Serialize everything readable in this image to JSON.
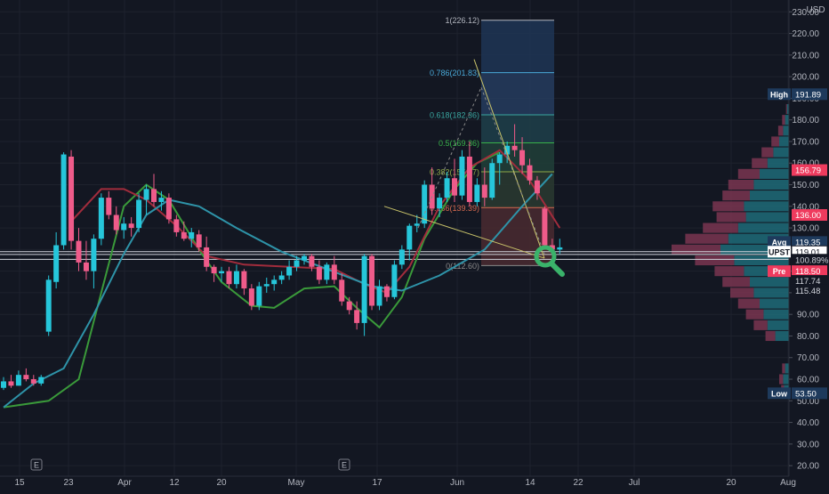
{
  "chart_data": {
    "type": "candlestick",
    "currency": "USD",
    "symbol": "UPST",
    "x_labels": [
      "15",
      "23",
      "Apr",
      "12",
      "20",
      "May",
      "17",
      "Jun",
      "14",
      "22",
      "Jul",
      "20",
      "Aug"
    ],
    "y_ticks": [
      "20.00",
      "30.00",
      "40.00",
      "50.00",
      "60.00",
      "70.00",
      "80.00",
      "90.00",
      "100.00",
      "110.00",
      "120.00",
      "130.00",
      "140.00",
      "150.00",
      "160.00",
      "170.00",
      "180.00",
      "190.00",
      "200.00",
      "210.00",
      "220.00",
      "230.00"
    ],
    "ylim": [
      18,
      233
    ],
    "event_markers": [
      {
        "label": "E",
        "x": "21"
      },
      {
        "label": "E",
        "x": "May 11"
      }
    ],
    "candles": [
      {
        "d": "Mar 12",
        "o": 56,
        "h": 61,
        "l": 55,
        "c": 59
      },
      {
        "d": "Mar 15",
        "o": 59,
        "h": 62,
        "l": 56,
        "c": 57
      },
      {
        "d": "Mar 16",
        "o": 57,
        "h": 64,
        "l": 57,
        "c": 62
      },
      {
        "d": "Mar 17",
        "o": 62,
        "h": 65,
        "l": 59,
        "c": 60
      },
      {
        "d": "Mar 18",
        "o": 60,
        "h": 62,
        "l": 57,
        "c": 58
      },
      {
        "d": "Mar 19",
        "o": 58,
        "h": 62,
        "l": 57,
        "c": 61
      },
      {
        "d": "Mar 22",
        "o": 82,
        "h": 108,
        "l": 80,
        "c": 106
      },
      {
        "d": "Mar 23",
        "o": 105,
        "h": 128,
        "l": 102,
        "c": 122
      },
      {
        "d": "Mar 24",
        "o": 122,
        "h": 165,
        "l": 120,
        "c": 164
      },
      {
        "d": "Mar 25",
        "o": 163,
        "h": 166,
        "l": 120,
        "c": 124
      },
      {
        "d": "Mar 26",
        "o": 124,
        "h": 130,
        "l": 110,
        "c": 114
      },
      {
        "d": "Mar 29",
        "o": 114,
        "h": 124,
        "l": 106,
        "c": 110
      },
      {
        "d": "Mar 30",
        "o": 110,
        "h": 127,
        "l": 102,
        "c": 125
      },
      {
        "d": "Mar 31",
        "o": 125,
        "h": 146,
        "l": 122,
        "c": 144
      },
      {
        "d": "Apr 1",
        "o": 144,
        "h": 147,
        "l": 134,
        "c": 136
      },
      {
        "d": "Apr 5",
        "o": 136,
        "h": 140,
        "l": 127,
        "c": 129
      },
      {
        "d": "Apr 6",
        "o": 129,
        "h": 135,
        "l": 125,
        "c": 132
      },
      {
        "d": "Apr 7",
        "o": 132,
        "h": 135,
        "l": 126,
        "c": 130
      },
      {
        "d": "Apr 8",
        "o": 130,
        "h": 146,
        "l": 128,
        "c": 143
      },
      {
        "d": "Apr 9",
        "o": 143,
        "h": 150,
        "l": 136,
        "c": 148
      },
      {
        "d": "Apr 12",
        "o": 148,
        "h": 155,
        "l": 140,
        "c": 142
      },
      {
        "d": "Apr 13",
        "o": 142,
        "h": 147,
        "l": 138,
        "c": 144
      },
      {
        "d": "Apr 14",
        "o": 144,
        "h": 146,
        "l": 132,
        "c": 134
      },
      {
        "d": "Apr 15",
        "o": 134,
        "h": 136,
        "l": 126,
        "c": 128
      },
      {
        "d": "Apr 16",
        "o": 128,
        "h": 133,
        "l": 124,
        "c": 125
      },
      {
        "d": "Apr 19",
        "o": 125,
        "h": 130,
        "l": 121,
        "c": 128
      },
      {
        "d": "Apr 20",
        "o": 127,
        "h": 129,
        "l": 119,
        "c": 121
      },
      {
        "d": "Apr 21",
        "o": 121,
        "h": 126,
        "l": 110,
        "c": 112
      },
      {
        "d": "Apr 22",
        "o": 112,
        "h": 113,
        "l": 105,
        "c": 109
      },
      {
        "d": "Apr 23",
        "o": 109,
        "h": 112,
        "l": 105,
        "c": 110
      },
      {
        "d": "Apr 26",
        "o": 110,
        "h": 112,
        "l": 102,
        "c": 104
      },
      {
        "d": "Apr 27",
        "o": 104,
        "h": 113,
        "l": 102,
        "c": 110
      },
      {
        "d": "Apr 28",
        "o": 110,
        "h": 111,
        "l": 99,
        "c": 102
      },
      {
        "d": "Apr 29",
        "o": 102,
        "h": 104,
        "l": 92,
        "c": 94
      },
      {
        "d": "Apr 30",
        "o": 94,
        "h": 105,
        "l": 92,
        "c": 103
      },
      {
        "d": "May 3",
        "o": 103,
        "h": 107,
        "l": 100,
        "c": 104
      },
      {
        "d": "May 4",
        "o": 104,
        "h": 108,
        "l": 101,
        "c": 106
      },
      {
        "d": "May 5",
        "o": 106,
        "h": 110,
        "l": 104,
        "c": 108
      },
      {
        "d": "May 6",
        "o": 108,
        "h": 115,
        "l": 106,
        "c": 112
      },
      {
        "d": "May 7",
        "o": 112,
        "h": 117,
        "l": 110,
        "c": 115
      },
      {
        "d": "May 10",
        "o": 115,
        "h": 118,
        "l": 113,
        "c": 117
      },
      {
        "d": "May 11",
        "o": 117,
        "h": 118,
        "l": 110,
        "c": 112
      },
      {
        "d": "May 12",
        "o": 112,
        "h": 115,
        "l": 104,
        "c": 106
      },
      {
        "d": "May 13",
        "o": 106,
        "h": 114,
        "l": 104,
        "c": 113
      },
      {
        "d": "May 14",
        "o": 113,
        "h": 117,
        "l": 104,
        "c": 106
      },
      {
        "d": "May 17",
        "o": 106,
        "h": 109,
        "l": 94,
        "c": 96
      },
      {
        "d": "May 18",
        "o": 96,
        "h": 98,
        "l": 90,
        "c": 92
      },
      {
        "d": "May 19",
        "o": 92,
        "h": 96,
        "l": 83,
        "c": 86
      },
      {
        "d": "May 20",
        "o": 86,
        "h": 118,
        "l": 80,
        "c": 117
      },
      {
        "d": "May 21",
        "o": 117,
        "h": 118,
        "l": 92,
        "c": 94
      },
      {
        "d": "May 24",
        "o": 94,
        "h": 106,
        "l": 92,
        "c": 103
      },
      {
        "d": "May 25",
        "o": 103,
        "h": 104,
        "l": 96,
        "c": 98
      },
      {
        "d": "May 26",
        "o": 98,
        "h": 115,
        "l": 97,
        "c": 113
      },
      {
        "d": "May 27",
        "o": 113,
        "h": 122,
        "l": 111,
        "c": 120
      },
      {
        "d": "May 28",
        "o": 120,
        "h": 132,
        "l": 115,
        "c": 131
      },
      {
        "d": "Jun 1",
        "o": 131,
        "h": 136,
        "l": 128,
        "c": 132
      },
      {
        "d": "Jun 2",
        "o": 132,
        "h": 152,
        "l": 130,
        "c": 150
      },
      {
        "d": "Jun 3",
        "o": 150,
        "h": 158,
        "l": 136,
        "c": 139
      },
      {
        "d": "Jun 4",
        "o": 139,
        "h": 146,
        "l": 135,
        "c": 144
      },
      {
        "d": "Jun 7",
        "o": 144,
        "h": 156,
        "l": 142,
        "c": 153
      },
      {
        "d": "Jun 8",
        "o": 153,
        "h": 162,
        "l": 142,
        "c": 145
      },
      {
        "d": "Jun 9",
        "o": 145,
        "h": 166,
        "l": 143,
        "c": 163
      },
      {
        "d": "Jun 10",
        "o": 163,
        "h": 170,
        "l": 140,
        "c": 142
      },
      {
        "d": "Jun 11",
        "o": 142,
        "h": 153,
        "l": 140,
        "c": 150
      },
      {
        "d": "Jun 14",
        "o": 150,
        "h": 158,
        "l": 140,
        "c": 144
      },
      {
        "d": "Jun 15",
        "o": 144,
        "h": 162,
        "l": 143,
        "c": 160
      },
      {
        "d": "Jun 16",
        "o": 160,
        "h": 165,
        "l": 150,
        "c": 164
      },
      {
        "d": "Jun 17",
        "o": 164,
        "h": 170,
        "l": 160,
        "c": 168
      },
      {
        "d": "Jun 18",
        "o": 168,
        "h": 178,
        "l": 163,
        "c": 166
      },
      {
        "d": "Jun 21",
        "o": 166,
        "h": 172,
        "l": 155,
        "c": 159
      },
      {
        "d": "Jun 22",
        "o": 159,
        "h": 162,
        "l": 150,
        "c": 152
      },
      {
        "d": "Jun 23",
        "o": 152,
        "h": 154,
        "l": 143,
        "c": 146
      },
      {
        "d": "Jun 24",
        "o": 139,
        "h": 140,
        "l": 121,
        "c": 122
      },
      {
        "d": "Jun 25",
        "o": 122,
        "h": 125,
        "l": 118,
        "c": 120
      },
      {
        "d": "Jun 28",
        "o": 120,
        "h": 125,
        "l": 118,
        "c": 121
      }
    ],
    "moving_averages": [
      {
        "color": "#3a9a3a",
        "points": [
          [
            0,
            47
          ],
          [
            6,
            50
          ],
          [
            10,
            60
          ],
          [
            13,
            100
          ],
          [
            16,
            140
          ],
          [
            19,
            150
          ],
          [
            22,
            143
          ],
          [
            26,
            120
          ],
          [
            29,
            105
          ],
          [
            33,
            94
          ],
          [
            36,
            93
          ],
          [
            40,
            102
          ],
          [
            44,
            103
          ],
          [
            47,
            93
          ],
          [
            50,
            84
          ],
          [
            53,
            98
          ],
          [
            56,
            125
          ],
          [
            60,
            148
          ],
          [
            63,
            160
          ],
          [
            66,
            165
          ]
        ]
      },
      {
        "color": "#a12c3c",
        "points": [
          [
            9,
            133
          ],
          [
            13,
            148
          ],
          [
            16,
            148
          ],
          [
            19,
            143
          ],
          [
            23,
            131
          ],
          [
            27,
            117
          ],
          [
            32,
            113
          ],
          [
            38,
            112
          ],
          [
            44,
            111
          ],
          [
            48,
            104
          ],
          [
            51,
            100
          ],
          [
            54,
            112
          ],
          [
            58,
            140
          ],
          [
            62,
            158
          ],
          [
            66,
            166
          ],
          [
            70,
            152
          ],
          [
            74,
            130
          ]
        ]
      },
      {
        "color": "#2e93a8",
        "points": [
          [
            0,
            47
          ],
          [
            4,
            58
          ],
          [
            8,
            65
          ],
          [
            12,
            90
          ],
          [
            16,
            118
          ],
          [
            19,
            136
          ],
          [
            22,
            143
          ],
          [
            26,
            140
          ],
          [
            31,
            130
          ],
          [
            37,
            119
          ],
          [
            43,
            111
          ],
          [
            49,
            103
          ],
          [
            53,
            101
          ],
          [
            58,
            108
          ],
          [
            64,
            120
          ],
          [
            69,
            140
          ],
          [
            73,
            155
          ]
        ]
      }
    ],
    "fibonacci": {
      "levels": [
        {
          "label": "1(226.12)",
          "value": 226.12,
          "color": "#b2b5be",
          "fill": "#1f3555"
        },
        {
          "label": "0.786(201.83)",
          "value": 201.83,
          "color": "#4aa9d8",
          "fill": "#263c5e"
        },
        {
          "label": "0.618(182.36)",
          "value": 182.36,
          "color": "#3aa7a0",
          "fill": "#1e404a"
        },
        {
          "label": "0.5(169.36)",
          "value": 169.36,
          "color": "#38b24a",
          "fill": "#214038"
        },
        {
          "label": "0.382(155.97)",
          "value": 155.97,
          "color": "#8fa846",
          "fill": "#2a3a30"
        },
        {
          "label": "0.236(139.39)",
          "value": 139.39,
          "color": "#d66a50",
          "fill": "#4a2a30"
        },
        {
          "label": "0(112.60)",
          "value": 112.6,
          "color": "#8a8a8a",
          "fill": "#3a2030"
        }
      ],
      "start": "Jun 18",
      "end": "Jun 29"
    },
    "volume_profile": [
      {
        "price": 185,
        "up": 2,
        "down": 1
      },
      {
        "price": 180,
        "up": 4,
        "down": 3
      },
      {
        "price": 175,
        "up": 6,
        "down": 5
      },
      {
        "price": 170,
        "up": 10,
        "down": 8
      },
      {
        "price": 165,
        "up": 16,
        "down": 12
      },
      {
        "price": 160,
        "up": 22,
        "down": 16
      },
      {
        "price": 155,
        "up": 30,
        "down": 22
      },
      {
        "price": 150,
        "up": 36,
        "down": 26
      },
      {
        "price": 145,
        "up": 40,
        "down": 28
      },
      {
        "price": 140,
        "up": 46,
        "down": 32
      },
      {
        "price": 135,
        "up": 44,
        "down": 30
      },
      {
        "price": 130,
        "up": 52,
        "down": 36
      },
      {
        "price": 125,
        "up": 62,
        "down": 44
      },
      {
        "price": 120,
        "up": 70,
        "down": 50
      },
      {
        "price": 115,
        "up": 56,
        "down": 40
      },
      {
        "price": 110,
        "up": 46,
        "down": 30
      },
      {
        "price": 105,
        "up": 40,
        "down": 28
      },
      {
        "price": 100,
        "up": 36,
        "down": 24
      },
      {
        "price": 95,
        "up": 30,
        "down": 22
      },
      {
        "price": 90,
        "up": 26,
        "down": 18
      },
      {
        "price": 85,
        "up": 22,
        "down": 14
      },
      {
        "price": 80,
        "up": 14,
        "down": 10
      },
      {
        "price": 65,
        "up": 4,
        "down": 3
      },
      {
        "price": 60,
        "up": 6,
        "down": 4
      },
      {
        "price": 55,
        "up": 5,
        "down": 3
      }
    ],
    "horizontal_lines": [
      119.01,
      117.74,
      115.48
    ],
    "price_labels": [
      {
        "name": "High",
        "value": "191.89",
        "y": 191.89,
        "kind": "hilo"
      },
      {
        "name": "",
        "value": "156.79",
        "y": 156.79,
        "kind": "red"
      },
      {
        "name": "",
        "value": "136.00",
        "y": 136.0,
        "kind": "red"
      },
      {
        "name": "Avg",
        "value": "119.35",
        "y": 123.5,
        "kind": "hilo"
      },
      {
        "name": "UPST",
        "value": "119.01",
        "y": 119.01,
        "kind": "last"
      },
      {
        "name": "",
        "value": "100.89%",
        "y": 115.3,
        "kind": "percent"
      },
      {
        "name": "Pre",
        "value": "118.50",
        "y": 110.0,
        "kind": "pre"
      },
      {
        "name": "",
        "value": "117.74",
        "y": 105.5,
        "kind": "plain"
      },
      {
        "name": "",
        "value": "115.48",
        "y": 101.0,
        "kind": "plain"
      },
      {
        "name": "Low",
        "value": "53.50",
        "y": 53.5,
        "kind": "hilo"
      }
    ],
    "colors": {
      "background": "#131722",
      "up": "#26c6da",
      "down": "#ef5b8a",
      "grid": "#1e222d",
      "text": "#b2b5be"
    }
  }
}
